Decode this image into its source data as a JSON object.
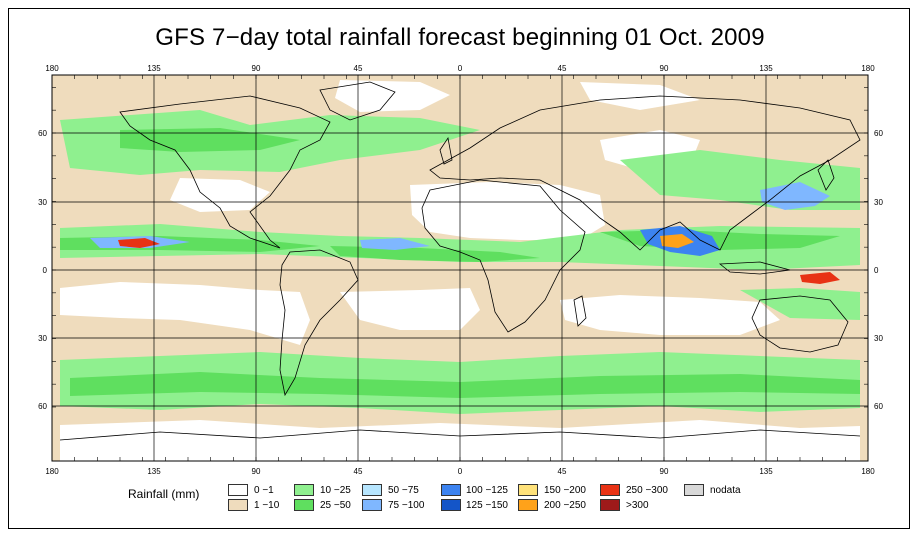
{
  "title": "GFS 7−day total rainfall forecast beginning 01 Oct. 2009",
  "map": {
    "lon_labels": [
      "180",
      "135",
      "90",
      "45",
      "0",
      "45",
      "90",
      "135",
      "180"
    ],
    "lat_labels": [
      "60",
      "30",
      "0",
      "30",
      "60"
    ]
  },
  "legend": {
    "title": "Rainfall (mm)",
    "items": [
      {
        "label": "0 −1",
        "color": "#ffffff"
      },
      {
        "label": "1 −10",
        "color": "#efdcbd"
      },
      {
        "label": "10 −25",
        "color": "#8ff08f"
      },
      {
        "label": "25 −50",
        "color": "#5fdf5f"
      },
      {
        "label": "50 −75",
        "color": "#b7e6ff"
      },
      {
        "label": "75 −100",
        "color": "#7fb7ff"
      },
      {
        "label": "100 −125",
        "color": "#3c83f0"
      },
      {
        "label": "125 −150",
        "color": "#1455c8"
      },
      {
        "label": "150 −200",
        "color": "#ffe27a"
      },
      {
        "label": "200 −250",
        "color": "#ffa21a"
      },
      {
        "label": "250 −300",
        "color": "#e83214"
      },
      {
        "label": ">300",
        "color": "#9e1a1a"
      },
      {
        "label": "nodata",
        "color": "#d8d8d8"
      }
    ]
  }
}
